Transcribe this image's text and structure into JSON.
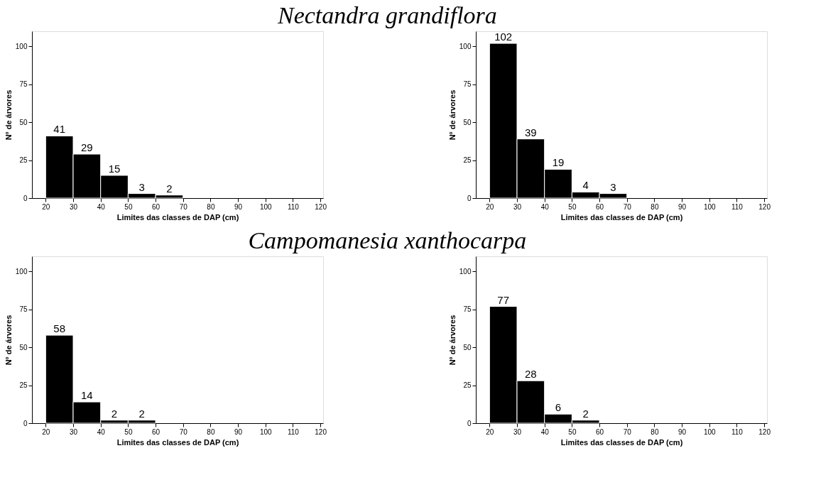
{
  "chart_data": [
    {
      "type": "histogram",
      "title": "Nectandra grandiflora",
      "xlabel": "Limites das classes de  DAP (cm)",
      "ylabel": "Nº de árvores",
      "bins": [
        20,
        30,
        40,
        50,
        60,
        70
      ],
      "values": [
        41,
        29,
        15,
        3,
        2
      ],
      "color": "#000000",
      "data_labels": true,
      "xlim": [
        15,
        121
      ],
      "xticks": [
        20,
        30,
        40,
        50,
        60,
        70,
        80,
        90,
        100,
        110,
        120
      ],
      "ylim": [
        0,
        110
      ],
      "yticks": [
        0,
        25,
        50,
        75,
        100
      ],
      "grid": false
    },
    {
      "type": "histogram",
      "xlabel": "Limites das classes de  DAP (cm)",
      "ylabel": "Nº de árvores",
      "bins": [
        20,
        30,
        40,
        50,
        60,
        70
      ],
      "values": [
        102,
        39,
        19,
        4,
        3
      ],
      "color": "#000000",
      "data_labels": true,
      "xlim": [
        15,
        121
      ],
      "xticks": [
        20,
        30,
        40,
        50,
        60,
        70,
        80,
        90,
        100,
        110,
        120
      ],
      "ylim": [
        0,
        110
      ],
      "yticks": [
        0,
        25,
        50,
        75,
        100
      ],
      "grid": false
    },
    {
      "type": "histogram",
      "title": "Campomanesia xanthocarpa",
      "xlabel": "Limites das classes de  DAP (cm)",
      "ylabel": "Nº de árvores",
      "bins": [
        20,
        30,
        40,
        50,
        60
      ],
      "values": [
        58,
        14,
        2,
        2
      ],
      "color": "#000000",
      "data_labels": true,
      "xlim": [
        15,
        121
      ],
      "xticks": [
        20,
        30,
        40,
        50,
        60,
        70,
        80,
        90,
        100,
        110,
        120
      ],
      "ylim": [
        0,
        110
      ],
      "yticks": [
        0,
        25,
        50,
        75,
        100
      ],
      "grid": false
    },
    {
      "type": "histogram",
      "xlabel": "Limites das classes de  DAP (cm)",
      "ylabel": "Nº de árvores",
      "bins": [
        20,
        30,
        40,
        50,
        60
      ],
      "values": [
        77,
        28,
        6,
        2
      ],
      "color": "#000000",
      "data_labels": true,
      "xlim": [
        15,
        121
      ],
      "xticks": [
        20,
        30,
        40,
        50,
        60,
        70,
        80,
        90,
        100,
        110,
        120
      ],
      "ylim": [
        0,
        110
      ],
      "yticks": [
        0,
        25,
        50,
        75,
        100
      ],
      "grid": false
    }
  ]
}
